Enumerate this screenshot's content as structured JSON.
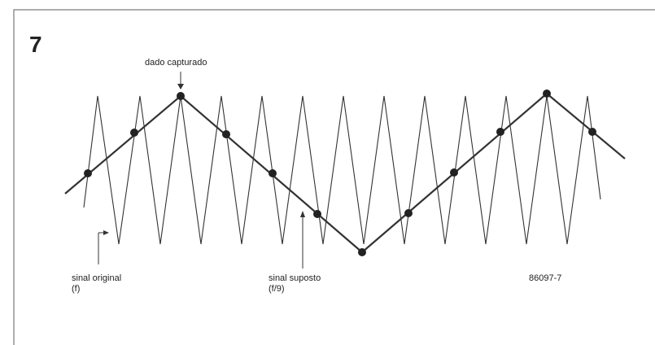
{
  "figure_number": "7",
  "labels": {
    "captured": "dado capturado",
    "original": "sinal original",
    "original_freq": "(f)",
    "assumed": "sinal suposto",
    "assumed_freq": "(f/9)",
    "code": "86097-7"
  }
}
